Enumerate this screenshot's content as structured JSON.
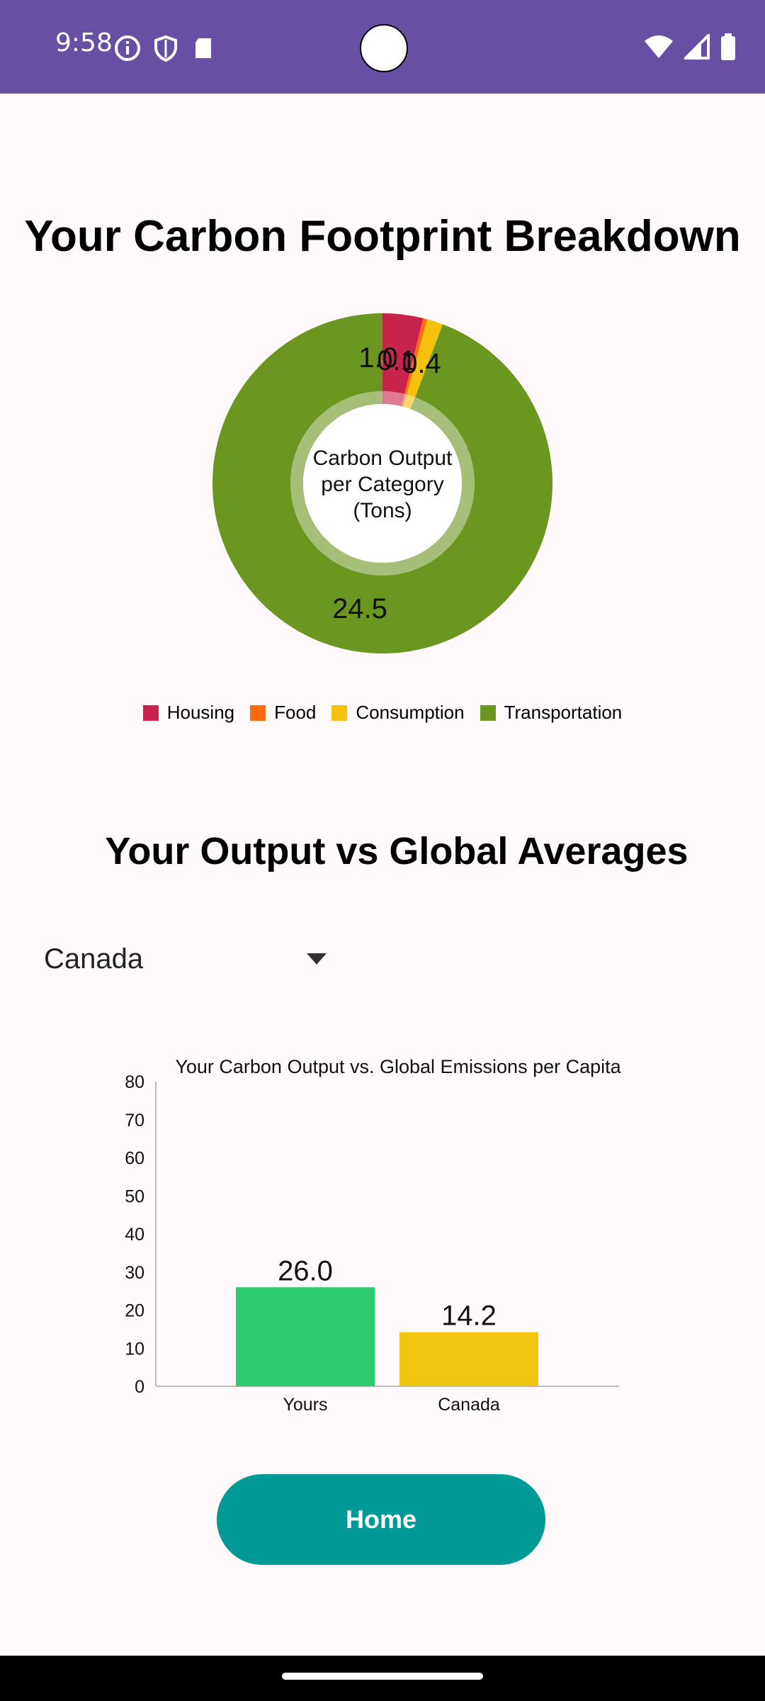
{
  "status": {
    "time": "9:58",
    "left_icons": [
      "info-icon",
      "shield-icon",
      "sd-card-icon"
    ],
    "right_icons": [
      "wifi-icon",
      "signal-icon",
      "battery-icon"
    ]
  },
  "page": {
    "title": "Your Carbon Footprint Breakdown",
    "section2_title": "Your Output vs Global Averages",
    "dropdown_value": "Canada",
    "home_label": "Home"
  },
  "colors": {
    "housing": "#C8234B",
    "food": "#FF6A0D",
    "consumption": "#F4C20D",
    "transportation": "#6B961F",
    "bar_yours": "#2ECC71",
    "bar_canada": "#F1C40F",
    "accent": "#6750A4",
    "button": "#009A96"
  },
  "chart_data": [
    {
      "type": "pie",
      "center_text_lines": [
        "Carbon Output",
        "per Category",
        "(Tons)"
      ],
      "categories": [
        "Housing",
        "Food",
        "Consumption",
        "Transportation"
      ],
      "values": [
        1.0,
        0.1,
        0.4,
        24.5
      ],
      "labels": [
        "1.0",
        "0.1",
        "0.4",
        "24.5"
      ]
    },
    {
      "type": "bar",
      "title": "Your Carbon Output vs. Global Emissions per Capita",
      "categories": [
        "Yours",
        "Canada"
      ],
      "values": [
        26.0,
        14.2
      ],
      "value_labels": [
        "26.0",
        "14.2"
      ],
      "ylim": [
        0,
        80
      ],
      "yticks": [
        "0",
        "10",
        "20",
        "30",
        "40",
        "50",
        "60",
        "70",
        "80"
      ]
    }
  ]
}
